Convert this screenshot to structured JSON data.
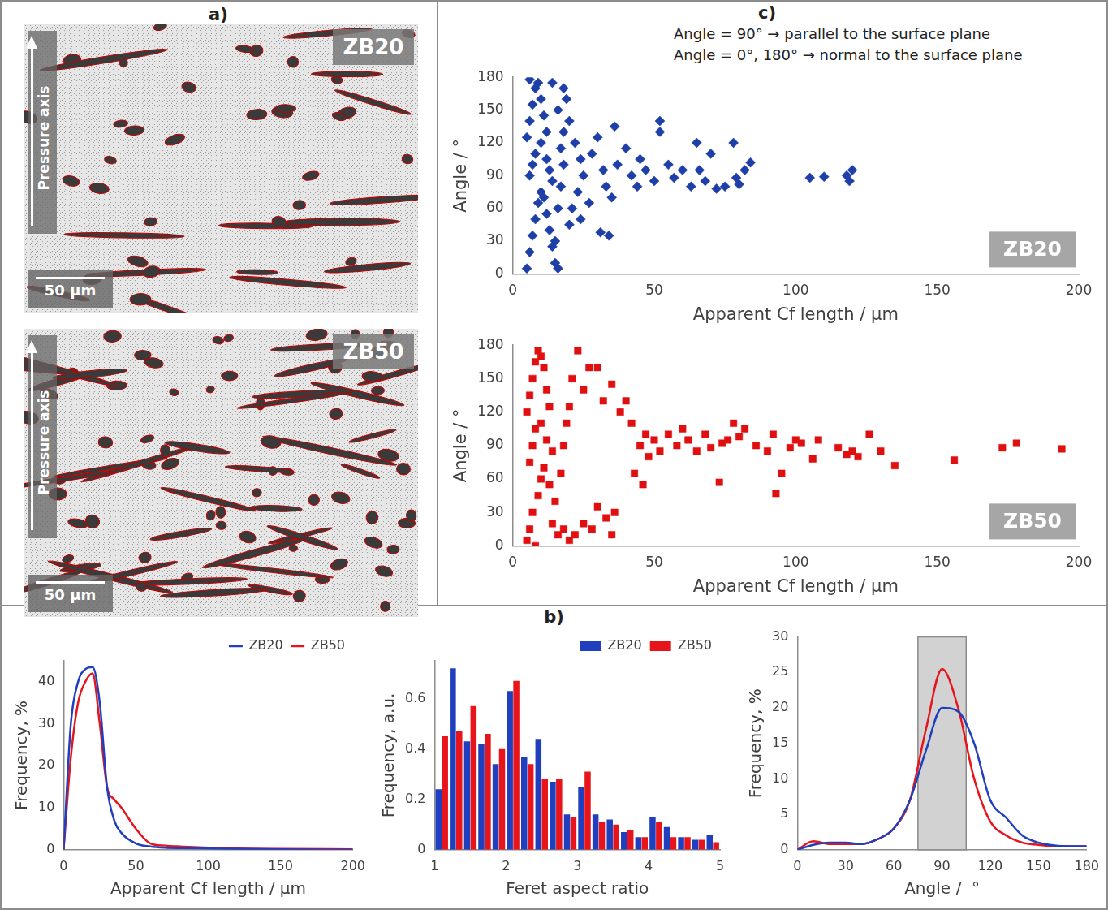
{
  "panel_a": {
    "letter": "a)",
    "images": [
      {
        "label": "ZB20",
        "axis_label": "Pressure axis",
        "scale_bar": "50 µm"
      },
      {
        "label": "ZB50",
        "axis_label": "Pressure axis",
        "scale_bar": "50 µm"
      }
    ]
  },
  "panel_b": {
    "letter": "b)"
  },
  "panel_c": {
    "letter": "c)",
    "notes": [
      "Angle = 90° → parallel to the surface plane",
      "Angle = 0°, 180° → normal to the surface plane"
    ]
  },
  "chart_data": [
    {
      "type": "scatter",
      "annotation": "ZB20",
      "x_label": "Apparent Cf length / µm",
      "y_label": "Angle / °",
      "xlim": [
        0,
        200
      ],
      "xticks": [
        0,
        50,
        100,
        150,
        200
      ],
      "ylim": [
        0,
        180
      ],
      "yticks": [
        0,
        30,
        60,
        90,
        120,
        150,
        180
      ],
      "grid": false,
      "color": "#1f3fa8",
      "marker": "diamond",
      "x": [
        5,
        6,
        7,
        8,
        9,
        10,
        6,
        7,
        8,
        5,
        6,
        7,
        8,
        6,
        9,
        10,
        11,
        12,
        10,
        12,
        13,
        14,
        11,
        12,
        13,
        14,
        15,
        16,
        15,
        16,
        17,
        18,
        17,
        18,
        16,
        20,
        22,
        24,
        25,
        23,
        21,
        20,
        24,
        27,
        28,
        30,
        32,
        33,
        35,
        34,
        31,
        36,
        37,
        40,
        42,
        44,
        45,
        47,
        50,
        52,
        52,
        55,
        57,
        60,
        63,
        65,
        66,
        68,
        70,
        72,
        75,
        78,
        80,
        82,
        84,
        79,
        105,
        110,
        119,
        120,
        118,
        18,
        14,
        19
      ],
      "values": [
        5,
        20,
        35,
        50,
        65,
        75,
        90,
        100,
        110,
        125,
        140,
        155,
        170,
        178,
        175,
        160,
        145,
        130,
        120,
        105,
        95,
        85,
        70,
        55,
        40,
        25,
        10,
        5,
        30,
        60,
        80,
        100,
        115,
        130,
        150,
        140,
        120,
        105,
        90,
        75,
        60,
        45,
        50,
        65,
        110,
        125,
        95,
        80,
        70,
        35,
        38,
        135,
        100,
        115,
        90,
        80,
        105,
        95,
        85,
        140,
        130,
        100,
        88,
        95,
        80,
        120,
        95,
        85,
        110,
        78,
        80,
        120,
        82,
        95,
        102,
        88,
        88,
        89,
        85,
        95,
        90,
        170,
        175,
        160
      ]
    },
    {
      "type": "scatter",
      "annotation": "ZB50",
      "x_label": "Apparent Cf length / µm",
      "y_label": "Angle / °",
      "xlim": [
        0,
        200
      ],
      "xticks": [
        0,
        50,
        100,
        150,
        200
      ],
      "ylim": [
        0,
        180
      ],
      "yticks": [
        0,
        30,
        60,
        90,
        120,
        150,
        180
      ],
      "grid": false,
      "color": "#e01010",
      "marker": "square",
      "x": [
        5,
        6,
        7,
        8,
        9,
        10,
        6,
        7,
        8,
        5,
        6,
        7,
        8,
        9,
        10,
        11,
        12,
        13,
        10,
        12,
        14,
        11,
        13,
        15,
        14,
        16,
        18,
        20,
        22,
        25,
        28,
        30,
        33,
        35,
        36,
        17,
        18,
        19,
        20,
        21,
        23,
        25,
        27,
        30,
        32,
        35,
        38,
        40,
        42,
        45,
        47,
        48,
        50,
        43,
        46,
        52,
        55,
        58,
        60,
        62,
        65,
        68,
        70,
        73,
        74,
        76,
        78,
        80,
        82,
        86,
        90,
        92,
        93,
        95,
        98,
        100,
        102,
        106,
        108,
        115,
        118,
        120,
        126,
        122,
        130,
        135,
        156,
        173,
        178,
        194
      ],
      "values": [
        5,
        15,
        30,
        0,
        45,
        60,
        75,
        90,
        105,
        120,
        135,
        150,
        165,
        175,
        170,
        160,
        140,
        125,
        110,
        95,
        85,
        70,
        55,
        40,
        20,
        10,
        15,
        5,
        10,
        20,
        15,
        35,
        25,
        10,
        30,
        65,
        90,
        110,
        125,
        150,
        175,
        140,
        160,
        160,
        130,
        145,
        120,
        130,
        110,
        90,
        100,
        80,
        95,
        65,
        55,
        85,
        100,
        90,
        105,
        95,
        85,
        100,
        88,
        57,
        92,
        95,
        110,
        98,
        105,
        90,
        85,
        100,
        47,
        65,
        88,
        95,
        92,
        78,
        95,
        88,
        82,
        85,
        100,
        80,
        85,
        72,
        77,
        88,
        92,
        87
      ]
    },
    {
      "type": "line",
      "x_label": "Apparent Cf length / µm",
      "y_label": "Frequency, %",
      "xlim": [
        0,
        200
      ],
      "xticks": [
        0,
        50,
        100,
        150,
        200
      ],
      "ylim": [
        0,
        45
      ],
      "yticks": [
        0,
        10,
        20,
        30,
        40
      ],
      "grid": false,
      "legend": "top right",
      "x": [
        0,
        5,
        10,
        15,
        20,
        25,
        30,
        35,
        40,
        50,
        60,
        70,
        80,
        100,
        120,
        150,
        200
      ],
      "series": [
        {
          "name": "ZB20",
          "color": "#1f3fbf",
          "values": [
            0,
            30,
            40,
            43,
            43.5,
            35,
            15,
            7,
            4,
            1.5,
            0.8,
            0.5,
            0.4,
            0.3,
            0.2,
            0.1,
            0
          ]
        },
        {
          "name": "ZB50",
          "color": "#e8141b",
          "values": [
            0,
            22,
            35,
            40,
            42,
            30,
            15,
            12,
            10,
            5,
            1.5,
            1,
            0.8,
            0.5,
            0.3,
            0.2,
            0.1
          ]
        }
      ]
    },
    {
      "type": "bar",
      "x_label": "Feret aspect ratio",
      "y_label": "Frequency, a.u.",
      "xlim": [
        1,
        5
      ],
      "xticks": [
        1,
        2,
        3,
        4,
        5
      ],
      "ylim": [
        0,
        0.75
      ],
      "yticks": [
        0,
        0.2,
        0.4,
        0.6
      ],
      "grid": false,
      "legend": "top right",
      "x": [
        1.1,
        1.3,
        1.5,
        1.7,
        1.9,
        2.1,
        2.3,
        2.5,
        2.7,
        2.9,
        3.1,
        3.3,
        3.5,
        3.7,
        3.9,
        4.1,
        4.3,
        4.5,
        4.7,
        4.9
      ],
      "series": [
        {
          "name": "ZB20",
          "color": "#1f3fbf",
          "values": [
            0.24,
            0.72,
            0.43,
            0.42,
            0.34,
            0.63,
            0.37,
            0.44,
            0.27,
            0.14,
            0.25,
            0.14,
            0.12,
            0.07,
            0.05,
            0.13,
            0.09,
            0.05,
            0.04,
            0.06
          ]
        },
        {
          "name": "ZB50",
          "color": "#e8141b",
          "values": [
            0.45,
            0.47,
            0.57,
            0.46,
            0.4,
            0.67,
            0.34,
            0.28,
            0.28,
            0.13,
            0.31,
            0.11,
            0.1,
            0.08,
            0.05,
            0.11,
            0.05,
            0.05,
            0.04,
            0.03
          ]
        }
      ]
    },
    {
      "type": "line",
      "x_label": "Angle /  °",
      "y_label": "Frequency, %",
      "xlim": [
        0,
        180
      ],
      "xticks": [
        0,
        30,
        60,
        90,
        120,
        150,
        180
      ],
      "ylim": [
        0,
        30
      ],
      "yticks": [
        0,
        5,
        10,
        15,
        20,
        25,
        30
      ],
      "grid": false,
      "band": [
        75,
        105
      ],
      "x": [
        0,
        10,
        20,
        30,
        40,
        50,
        60,
        70,
        80,
        90,
        100,
        110,
        120,
        130,
        140,
        150,
        160,
        170,
        180
      ],
      "series": [
        {
          "color": "#1f3fbf",
          "values": [
            0,
            0.7,
            1,
            1,
            0.8,
            1.5,
            3,
            7,
            14,
            20,
            19.5,
            15,
            7,
            4.5,
            2,
            1,
            0.6,
            0.5,
            0.5
          ]
        },
        {
          "color": "#e8141b",
          "values": [
            0,
            1.2,
            0.8,
            0.8,
            0.8,
            1.5,
            3,
            7,
            17,
            25.5,
            20,
            10,
            4,
            2,
            1,
            0.7,
            0.5,
            0.5,
            0.5
          ]
        }
      ]
    }
  ]
}
